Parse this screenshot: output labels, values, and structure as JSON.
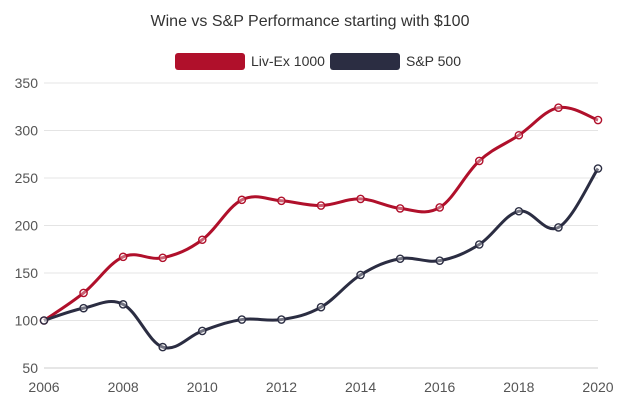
{
  "chart_data": {
    "type": "line",
    "title": "Wine vs S&P Performance starting with $100",
    "x": [
      2006,
      2007,
      2008,
      2009,
      2010,
      2011,
      2012,
      2013,
      2014,
      2015,
      2016,
      2017,
      2018,
      2019,
      2020
    ],
    "x_tick_labels": [
      "2006",
      "2008",
      "2010",
      "2012",
      "2014",
      "2016",
      "2018",
      "2020"
    ],
    "y_tick_labels": [
      "50",
      "100",
      "150",
      "200",
      "250",
      "300",
      "350"
    ],
    "ylim": [
      50,
      350
    ],
    "xlim": [
      2006,
      2020
    ],
    "grid": true,
    "legend_position": "top-center",
    "series": [
      {
        "name": "Liv-Ex 1000",
        "color": "#b0102b",
        "values": [
          100,
          129,
          167,
          166,
          185,
          227,
          226,
          221,
          228,
          218,
          219,
          268,
          295,
          324,
          311
        ]
      },
      {
        "name": "S&P 500",
        "color": "#2b2d42",
        "values": [
          100,
          113,
          117,
          72,
          89,
          101,
          101,
          114,
          148,
          165,
          163,
          180,
          215,
          198,
          260
        ]
      }
    ]
  }
}
